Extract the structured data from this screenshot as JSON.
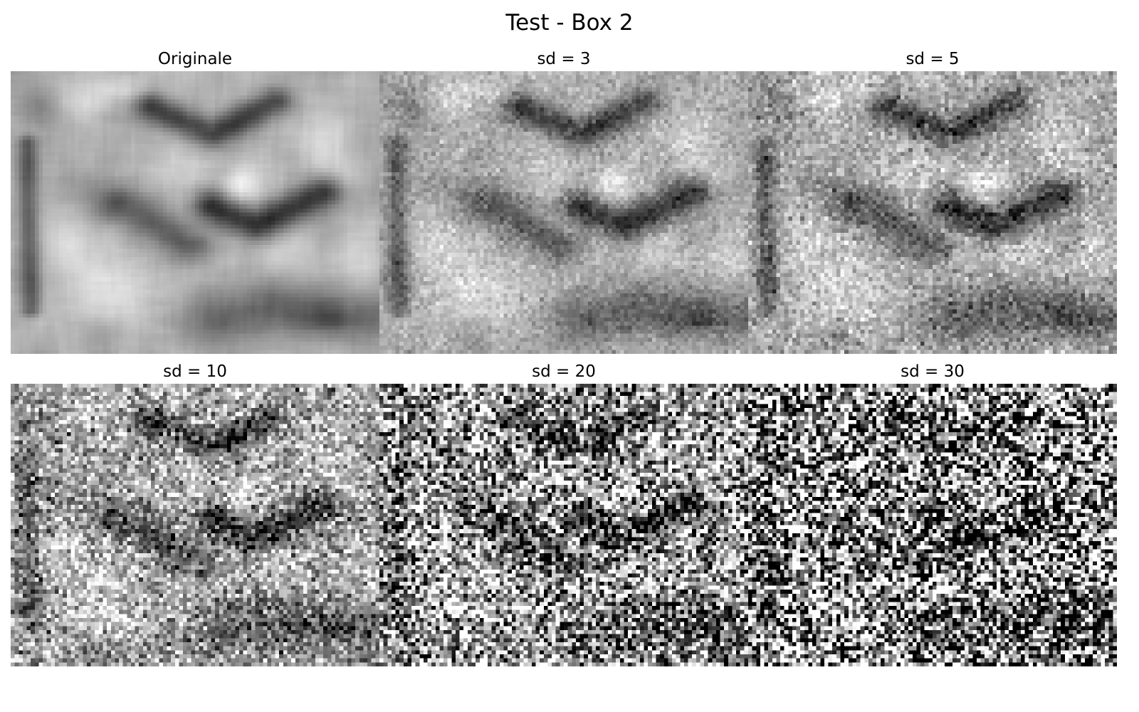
{
  "figure": {
    "title": "Test - Box 2"
  },
  "panels": [
    {
      "title": "Originale",
      "sd": 0
    },
    {
      "title": "sd = 3",
      "sd": 3
    },
    {
      "title": "sd = 5",
      "sd": 5
    },
    {
      "title": "sd = 10",
      "sd": 10
    },
    {
      "title": "sd = 20",
      "sd": 20
    },
    {
      "title": "sd = 30",
      "sd": 30
    }
  ],
  "colormap": "gray",
  "axes": "off"
}
